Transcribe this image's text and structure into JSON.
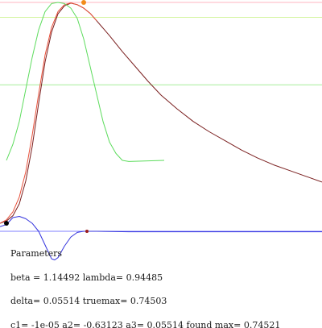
{
  "chart_data": {
    "type": "line",
    "title": "",
    "xlabel": "",
    "ylabel": "",
    "grid": false,
    "reference_lines": [
      {
        "value": 1.0,
        "color": "#ffb6c1"
      },
      {
        "value": 0.935,
        "color": "#d4f5a0"
      },
      {
        "value": 0.64,
        "color": "#a6ee9a"
      },
      {
        "value": 0.0,
        "color": "#7f7fff"
      }
    ],
    "series": [
      {
        "color": "#7a1f1f",
        "points": [
          [
            0.0,
            0.035
          ],
          [
            0.02,
            0.045
          ],
          [
            0.04,
            0.068
          ],
          [
            0.06,
            0.12
          ],
          [
            0.08,
            0.22
          ],
          [
            0.1,
            0.37
          ],
          [
            0.12,
            0.56
          ],
          [
            0.14,
            0.74
          ],
          [
            0.16,
            0.87
          ],
          [
            0.18,
            0.95
          ],
          [
            0.2,
            0.985
          ],
          [
            0.22,
            0.997
          ],
          [
            0.24,
            0.99
          ],
          [
            0.26,
            0.975
          ],
          [
            0.28,
            0.952
          ],
          [
            0.3,
            0.92
          ],
          [
            0.34,
            0.855
          ],
          [
            0.38,
            0.785
          ],
          [
            0.42,
            0.72
          ],
          [
            0.46,
            0.655
          ],
          [
            0.5,
            0.595
          ],
          [
            0.55,
            0.535
          ],
          [
            0.6,
            0.48
          ],
          [
            0.65,
            0.435
          ],
          [
            0.7,
            0.395
          ],
          [
            0.75,
            0.355
          ],
          [
            0.8,
            0.32
          ],
          [
            0.85,
            0.29
          ],
          [
            0.9,
            0.265
          ],
          [
            0.95,
            0.24
          ],
          [
            1.0,
            0.215
          ]
        ]
      },
      {
        "color": "#e8503a",
        "points": [
          [
            0.0,
            0.035
          ],
          [
            0.02,
            0.05
          ],
          [
            0.04,
            0.085
          ],
          [
            0.06,
            0.15
          ],
          [
            0.08,
            0.26
          ],
          [
            0.1,
            0.42
          ],
          [
            0.12,
            0.6
          ],
          [
            0.14,
            0.77
          ],
          [
            0.16,
            0.89
          ],
          [
            0.18,
            0.96
          ],
          [
            0.2,
            0.99
          ],
          [
            0.22,
            0.998
          ],
          [
            0.24,
            0.99
          ],
          [
            0.26,
            0.975
          ],
          [
            0.28,
            0.952
          ],
          [
            0.3,
            0.92
          ]
        ]
      },
      {
        "color": "#5ddc5d",
        "points": [
          [
            0.02,
            0.31
          ],
          [
            0.04,
            0.38
          ],
          [
            0.06,
            0.48
          ],
          [
            0.08,
            0.62
          ],
          [
            0.1,
            0.76
          ],
          [
            0.12,
            0.88
          ],
          [
            0.14,
            0.96
          ],
          [
            0.16,
            0.995
          ],
          [
            0.18,
            1.0
          ],
          [
            0.2,
            0.995
          ],
          [
            0.22,
            0.975
          ],
          [
            0.24,
            0.93
          ],
          [
            0.26,
            0.84
          ],
          [
            0.28,
            0.72
          ],
          [
            0.3,
            0.6
          ],
          [
            0.32,
            0.48
          ],
          [
            0.34,
            0.39
          ],
          [
            0.36,
            0.34
          ],
          [
            0.38,
            0.31
          ],
          [
            0.4,
            0.305
          ],
          [
            0.51,
            0.31
          ]
        ]
      },
      {
        "color": "#3333dd",
        "points": [
          [
            0.0,
            0.02
          ],
          [
            0.02,
            0.03
          ],
          [
            0.04,
            0.06
          ],
          [
            0.06,
            0.065
          ],
          [
            0.08,
            0.055
          ],
          [
            0.1,
            0.035
          ],
          [
            0.12,
            0.0
          ],
          [
            0.14,
            -0.06
          ],
          [
            0.16,
            -0.12
          ],
          [
            0.17,
            -0.125
          ],
          [
            0.18,
            -0.115
          ],
          [
            0.2,
            -0.065
          ],
          [
            0.22,
            -0.025
          ],
          [
            0.24,
            -0.005
          ],
          [
            0.26,
            0.0
          ],
          [
            0.3,
            0.0
          ],
          [
            0.4,
            -0.002
          ],
          [
            1.0,
            -0.002
          ]
        ]
      }
    ],
    "markers": [
      {
        "x": 0.26,
        "y": 1.0,
        "color": "#f28c1a"
      },
      {
        "x": 0.02,
        "y": 0.035,
        "color": "#000000"
      },
      {
        "x": 0.27,
        "y": 0.0,
        "color": "#9b1c1c"
      }
    ]
  },
  "params": {
    "title": "Parameters",
    "line1": "beta = 1.14492 lambda= 0.94485",
    "line2": "delta= 0.05514 truemax= 0.74503",
    "line3": "c1= -1e-05 a2= -0.63123 a3= 0.05514 found max= 0.74521"
  }
}
